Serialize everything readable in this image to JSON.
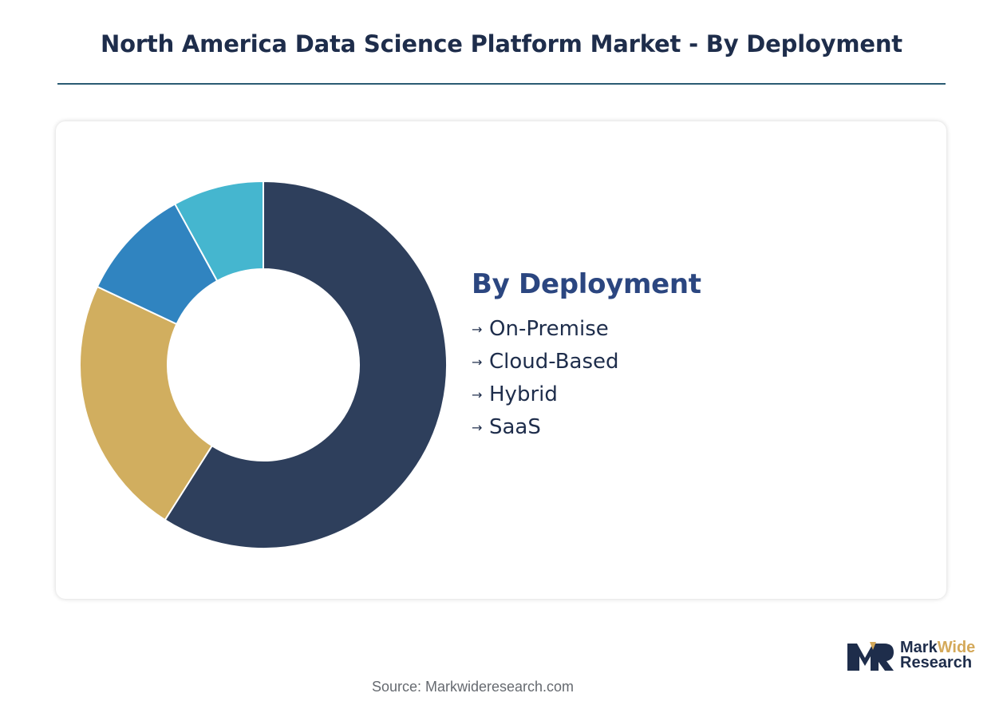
{
  "title": "North America Data Science Platform Market - By Deployment",
  "chart_data": {
    "type": "pie",
    "variant": "donut",
    "categories": [
      "On-Premise",
      "Cloud-Based",
      "Hybrid",
      "SaaS"
    ],
    "values": [
      59,
      23,
      10,
      8
    ],
    "colors": [
      "#2e3f5c",
      "#d1ae5f",
      "#3084c0",
      "#45b6cf"
    ]
  },
  "legend": {
    "title": "By Deployment",
    "arrow": "→",
    "items": [
      "On-Premise",
      "Cloud-Based",
      "Hybrid",
      "SaaS"
    ]
  },
  "logo": {
    "line1a": "Mark",
    "line1b": "Wide",
    "line2": "Research"
  },
  "source": "Source: Markwideresearch.com"
}
